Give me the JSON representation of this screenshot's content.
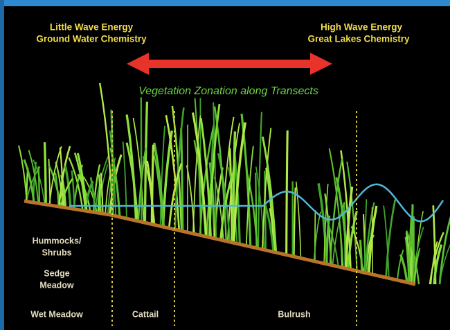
{
  "header": {
    "left": {
      "lines": [
        "Little Wave Energy",
        "Ground Water Chemistry"
      ]
    },
    "right": {
      "lines": [
        "High Wave Energy",
        "Great Lakes Chemistry"
      ]
    },
    "title": "Vegetation Zonation along Transects"
  },
  "zones": [
    {
      "lines": [
        "Hummocks/",
        "Shrubs"
      ]
    },
    {
      "lines": [
        "Sedge",
        "Meadow"
      ]
    },
    {
      "lines": [
        "Wet Meadow"
      ]
    },
    {
      "lines": [
        "Cattail"
      ]
    },
    {
      "lines": [
        "Bulrush"
      ]
    }
  ]
}
